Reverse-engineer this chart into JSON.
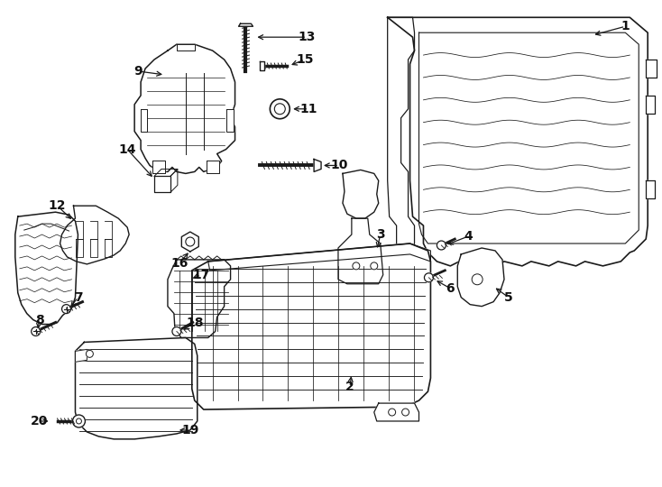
{
  "background_color": "#ffffff",
  "line_color": "#1a1a1a",
  "label_fontsize": 10,
  "label_fontweight": "bold",
  "fig_width": 7.34,
  "fig_height": 5.4,
  "dpi": 100
}
